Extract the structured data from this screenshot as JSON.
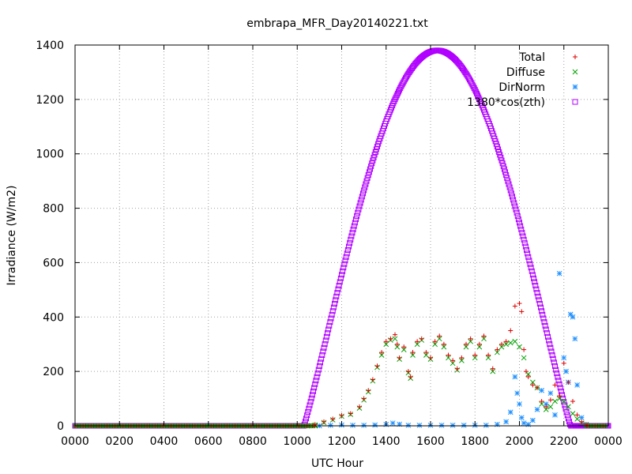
{
  "chart_data": {
    "type": "scatter",
    "title": "embrapa_MFR_Day20140221.txt",
    "xlabel": "UTC Hour",
    "ylabel": "Irradiance (W/m2)",
    "xlim": [
      0,
      24
    ],
    "ylim": [
      0,
      1400
    ],
    "x_ticks": [
      {
        "value": 0,
        "label": "0000"
      },
      {
        "value": 2,
        "label": "0200"
      },
      {
        "value": 4,
        "label": "0400"
      },
      {
        "value": 6,
        "label": "0600"
      },
      {
        "value": 8,
        "label": "0800"
      },
      {
        "value": 10,
        "label": "1000"
      },
      {
        "value": 12,
        "label": "1200"
      },
      {
        "value": 14,
        "label": "1400"
      },
      {
        "value": 16,
        "label": "1600"
      },
      {
        "value": 18,
        "label": "1800"
      },
      {
        "value": 20,
        "label": "2000"
      },
      {
        "value": 22,
        "label": "2200"
      },
      {
        "value": 24,
        "label": "0000"
      }
    ],
    "y_ticks": [
      {
        "value": 0,
        "label": "0"
      },
      {
        "value": 200,
        "label": "200"
      },
      {
        "value": 400,
        "label": "400"
      },
      {
        "value": 600,
        "label": "600"
      },
      {
        "value": 800,
        "label": "800"
      },
      {
        "value": 1000,
        "label": "1000"
      },
      {
        "value": 1200,
        "label": "1200"
      },
      {
        "value": 1400,
        "label": "1400"
      }
    ],
    "grid": true,
    "legend_position": "top-right",
    "series": [
      {
        "name": "Total",
        "marker": "plus",
        "color": "#dd0000",
        "points": [
          [
            10.8,
            5
          ],
          [
            11.2,
            15
          ],
          [
            11.6,
            25
          ],
          [
            12.0,
            38
          ],
          [
            12.4,
            45
          ],
          [
            12.8,
            70
          ],
          [
            13.0,
            100
          ],
          [
            13.2,
            130
          ],
          [
            13.4,
            170
          ],
          [
            13.6,
            220
          ],
          [
            13.8,
            270
          ],
          [
            14.0,
            310
          ],
          [
            14.2,
            320
          ],
          [
            14.4,
            335
          ],
          [
            14.5,
            300
          ],
          [
            14.6,
            250
          ],
          [
            14.8,
            290
          ],
          [
            15.0,
            200
          ],
          [
            15.1,
            180
          ],
          [
            15.2,
            270
          ],
          [
            15.4,
            310
          ],
          [
            15.6,
            320
          ],
          [
            15.8,
            270
          ],
          [
            16.0,
            250
          ],
          [
            16.2,
            310
          ],
          [
            16.4,
            330
          ],
          [
            16.6,
            300
          ],
          [
            16.8,
            260
          ],
          [
            17.0,
            240
          ],
          [
            17.2,
            210
          ],
          [
            17.4,
            250
          ],
          [
            17.6,
            300
          ],
          [
            17.8,
            320
          ],
          [
            18.0,
            260
          ],
          [
            18.2,
            300
          ],
          [
            18.4,
            330
          ],
          [
            18.6,
            260
          ],
          [
            18.8,
            210
          ],
          [
            19.0,
            280
          ],
          [
            19.2,
            300
          ],
          [
            19.4,
            310
          ],
          [
            19.6,
            350
          ],
          [
            19.8,
            440
          ],
          [
            20.0,
            450
          ],
          [
            20.1,
            420
          ],
          [
            20.2,
            280
          ],
          [
            20.3,
            200
          ],
          [
            20.4,
            180
          ],
          [
            20.6,
            150
          ],
          [
            20.8,
            140
          ],
          [
            21.0,
            90
          ],
          [
            21.2,
            70
          ],
          [
            21.4,
            95
          ],
          [
            21.6,
            150
          ],
          [
            21.8,
            110
          ],
          [
            22.0,
            230
          ],
          [
            22.2,
            160
          ],
          [
            22.4,
            90
          ],
          [
            22.6,
            40
          ],
          [
            22.8,
            15
          ],
          [
            23.0,
            5
          ]
        ]
      },
      {
        "name": "Diffuse",
        "marker": "cross",
        "color": "#00a000",
        "points": [
          [
            10.8,
            3
          ],
          [
            11.2,
            12
          ],
          [
            11.6,
            22
          ],
          [
            12.0,
            35
          ],
          [
            12.4,
            42
          ],
          [
            12.8,
            65
          ],
          [
            13.0,
            95
          ],
          [
            13.2,
            125
          ],
          [
            13.4,
            165
          ],
          [
            13.6,
            215
          ],
          [
            13.8,
            260
          ],
          [
            14.0,
            300
          ],
          [
            14.2,
            315
          ],
          [
            14.4,
            320
          ],
          [
            14.5,
            290
          ],
          [
            14.6,
            245
          ],
          [
            14.8,
            280
          ],
          [
            15.0,
            195
          ],
          [
            15.1,
            175
          ],
          [
            15.2,
            260
          ],
          [
            15.4,
            300
          ],
          [
            15.6,
            315
          ],
          [
            15.8,
            260
          ],
          [
            16.0,
            245
          ],
          [
            16.2,
            300
          ],
          [
            16.4,
            320
          ],
          [
            16.6,
            290
          ],
          [
            16.8,
            250
          ],
          [
            17.0,
            230
          ],
          [
            17.2,
            205
          ],
          [
            17.4,
            240
          ],
          [
            17.6,
            290
          ],
          [
            17.8,
            310
          ],
          [
            18.0,
            250
          ],
          [
            18.2,
            290
          ],
          [
            18.4,
            320
          ],
          [
            18.6,
            250
          ],
          [
            18.8,
            200
          ],
          [
            19.0,
            270
          ],
          [
            19.2,
            290
          ],
          [
            19.4,
            300
          ],
          [
            19.6,
            305
          ],
          [
            19.8,
            310
          ],
          [
            20.0,
            290
          ],
          [
            20.2,
            250
          ],
          [
            20.4,
            190
          ],
          [
            20.6,
            160
          ],
          [
            20.8,
            140
          ],
          [
            21.0,
            80
          ],
          [
            21.2,
            60
          ],
          [
            21.4,
            70
          ],
          [
            21.6,
            90
          ],
          [
            21.8,
            100
          ],
          [
            22.0,
            90
          ],
          [
            22.2,
            70
          ],
          [
            22.4,
            45
          ],
          [
            22.6,
            25
          ],
          [
            22.8,
            10
          ],
          [
            23.0,
            3
          ]
        ]
      },
      {
        "name": "DirNorm",
        "marker": "star",
        "color": "#1e90ff",
        "points": [
          [
            10.5,
            0
          ],
          [
            11.0,
            0
          ],
          [
            11.5,
            2
          ],
          [
            12.0,
            3
          ],
          [
            12.5,
            2
          ],
          [
            13.0,
            2
          ],
          [
            13.5,
            3
          ],
          [
            14.0,
            5
          ],
          [
            14.3,
            10
          ],
          [
            14.6,
            6
          ],
          [
            15.0,
            2
          ],
          [
            15.5,
            2
          ],
          [
            16.0,
            2
          ],
          [
            16.5,
            2
          ],
          [
            17.0,
            2
          ],
          [
            17.5,
            2
          ],
          [
            18.0,
            2
          ],
          [
            18.5,
            2
          ],
          [
            19.0,
            5
          ],
          [
            19.4,
            15
          ],
          [
            19.6,
            50
          ],
          [
            19.8,
            180
          ],
          [
            19.9,
            120
          ],
          [
            20.0,
            80
          ],
          [
            20.1,
            30
          ],
          [
            20.2,
            10
          ],
          [
            20.4,
            5
          ],
          [
            20.6,
            20
          ],
          [
            20.8,
            60
          ],
          [
            21.0,
            130
          ],
          [
            21.2,
            80
          ],
          [
            21.4,
            120
          ],
          [
            21.6,
            40
          ],
          [
            21.8,
            560
          ],
          [
            22.0,
            250
          ],
          [
            22.1,
            200
          ],
          [
            22.2,
            160
          ],
          [
            22.3,
            410
          ],
          [
            22.4,
            400
          ],
          [
            22.5,
            320
          ],
          [
            22.6,
            150
          ],
          [
            22.8,
            30
          ],
          [
            23.0,
            5
          ]
        ]
      },
      {
        "name": "1380*cos(zth)",
        "marker": "square",
        "color": "#b000ff",
        "curve": {
          "amplitude": 1380,
          "peak_hour": 16.3,
          "sunrise": 10.3,
          "sunset": 22.3,
          "exponent": 1.08
        }
      }
    ]
  }
}
